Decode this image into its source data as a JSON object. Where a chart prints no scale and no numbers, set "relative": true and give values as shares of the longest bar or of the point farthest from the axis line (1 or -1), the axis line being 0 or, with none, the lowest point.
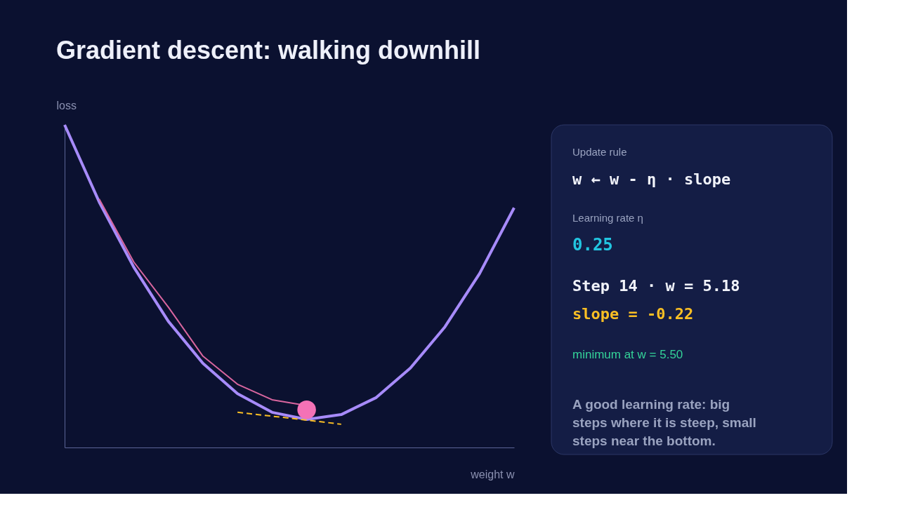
{
  "chart_data": {
    "type": "line",
    "title": "Gradient descent: walking downhill",
    "xlabel": "weight w",
    "ylabel": "loss",
    "relative": true,
    "categories": [
      null,
      null,
      null,
      null,
      null,
      null,
      null,
      null,
      null,
      null,
      null,
      null,
      null,
      null
    ],
    "series": [
      {
        "color": "#a78bfa",
        "values": [
          1,
          0.761,
          0.559,
          0.391,
          0.261,
          0.167,
          0.109,
          0.087,
          0.102,
          0.154,
          0.246,
          0.374,
          0.539,
          0.743
        ]
      },
      {
        "color": "#d9669f",
        "values": [
          null,
          0.77,
          0.575,
          0.435,
          0.283,
          0.196,
          0.148,
          0.13,
          null,
          null,
          null,
          null,
          null,
          null
        ]
      },
      {
        "color": "#fbbf24",
        "line_style": "dashed",
        "values": [
          null,
          null,
          null,
          null,
          null,
          0.109,
          0.097,
          0.085,
          0.072,
          null,
          null,
          null,
          null,
          null
        ]
      },
      {
        "marker": "circle",
        "color": "#f472b6",
        "values": [
          null,
          null,
          null,
          null,
          null,
          null,
          null,
          0.117,
          null,
          null,
          null,
          null,
          null,
          null
        ]
      }
    ],
    "annotations": [
      "Update rule",
      "w ← w - η · slope",
      "Learning rate η",
      "0.25",
      "Step 14 · w = 5.18",
      "slope = -0.22",
      "minimum at w = 5.50",
      "A good learning rate: big steps where it is steep, small steps near the bottom."
    ]
  }
}
